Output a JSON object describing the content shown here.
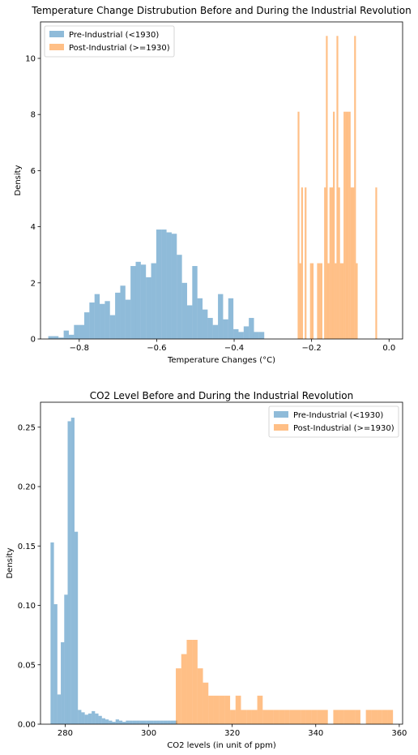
{
  "colors": {
    "pre": "#1f77b4",
    "post": "#ff7f0e",
    "alpha": 0.5
  },
  "chart_data": [
    {
      "type": "histogram",
      "title": "Temperature Change Distrubution Before and During the Industrial Revolution",
      "xlabel": "Temperature Changes (°C)",
      "ylabel": "Density",
      "xlim": [
        -0.9,
        0.035
      ],
      "ylim": [
        0,
        11.3
      ],
      "xticks": [
        -0.8,
        -0.6,
        -0.4,
        -0.2,
        0.0
      ],
      "xtick_labels": [
        "−0.8",
        "−0.6",
        "−0.4",
        "−0.2",
        "0.0"
      ],
      "yticks": [
        0,
        2,
        4,
        6,
        8,
        10
      ],
      "ytick_labels": [
        "0",
        "2",
        "4",
        "6",
        "8",
        "10"
      ],
      "legend_position": "top-left",
      "grid": false,
      "series": [
        {
          "name": "Pre-Industrial (<1930)",
          "color_key": "pre",
          "bin_start": -0.88,
          "bin_width": 0.01328,
          "values": [
            0.1,
            0.1,
            0.05,
            0.3,
            0.15,
            0.5,
            0.5,
            0.95,
            1.3,
            1.6,
            1.25,
            1.35,
            0.85,
            1.65,
            1.9,
            1.4,
            2.6,
            2.75,
            2.65,
            2.2,
            2.7,
            3.9,
            3.9,
            3.8,
            3.75,
            3.0,
            2.0,
            1.2,
            2.6,
            1.45,
            1.05,
            0.75,
            0.5,
            1.6,
            0.7,
            1.45,
            0.35,
            0.25,
            0.45,
            0.75,
            0.25,
            0.25
          ]
        },
        {
          "name": "Post-Industrial (>=1930)",
          "color_key": "post",
          "bin_start": -0.236,
          "bin_width": 0.00456,
          "values": [
            8.1,
            2.7,
            5.4,
            0,
            5.4,
            0,
            0,
            2.7,
            2.7,
            0,
            0,
            2.7,
            2.7,
            2.7,
            0,
            5.4,
            10.8,
            2.7,
            5.4,
            5.4,
            8.1,
            2.7,
            10.8,
            5.4,
            2.7,
            2.7,
            8.1,
            8.1,
            8.1,
            8.1,
            5.4,
            5.4,
            10.8,
            2.7,
            0,
            0,
            0,
            0,
            0,
            0,
            0,
            0,
            0,
            0,
            5.4
          ]
        }
      ]
    },
    {
      "type": "histogram",
      "title": "CO2 Level Before and During the Industrial Revolution",
      "xlabel": "CO2 levels (in unit of ppm)",
      "ylabel": "Density",
      "xlim": [
        274.1,
        360.8
      ],
      "ylim": [
        0,
        0.271
      ],
      "xticks": [
        280,
        300,
        320,
        340,
        360
      ],
      "xtick_labels": [
        "280",
        "300",
        "320",
        "340",
        "360"
      ],
      "yticks": [
        0,
        0.05,
        0.1,
        0.15,
        0.2,
        0.25
      ],
      "ytick_labels": [
        "0.00",
        "0.05",
        "0.10",
        "0.15",
        "0.20",
        "0.25"
      ],
      "legend_position": "top-right",
      "grid": false,
      "series": [
        {
          "name": "Pre-Industrial (<1930)",
          "color_key": "pre",
          "bin_start": 276.5,
          "bin_width": 0.82,
          "values": [
            0.153,
            0.101,
            0.025,
            0.069,
            0.109,
            0.255,
            0.258,
            0.162,
            0.012,
            0.01,
            0.008,
            0.009,
            0.011,
            0.009,
            0.007,
            0.005,
            0.004,
            0.003,
            0.002,
            0.004,
            0.003,
            0.002,
            0.003,
            0.003,
            0.003,
            0.003,
            0.003,
            0.003,
            0.003,
            0.003,
            0.003,
            0.003,
            0.003,
            0.003,
            0.003,
            0.003,
            0.003
          ]
        },
        {
          "name": "Post-Industrial (>=1930)",
          "color_key": "post",
          "bin_start": 306.5,
          "bin_width": 1.3,
          "values": [
            0.047,
            0.059,
            0.071,
            0.071,
            0.047,
            0.035,
            0.024,
            0.024,
            0.024,
            0.024,
            0.012,
            0.024,
            0.012,
            0.012,
            0.012,
            0.024,
            0.012,
            0.012,
            0.012,
            0.012,
            0.012,
            0.012,
            0.012,
            0.012,
            0.012,
            0.012,
            0.012,
            0.012,
            0.0,
            0.012,
            0.012,
            0.012,
            0.012,
            0.012,
            0.0,
            0.012,
            0.012,
            0.012,
            0.012,
            0.012
          ]
        }
      ]
    }
  ]
}
